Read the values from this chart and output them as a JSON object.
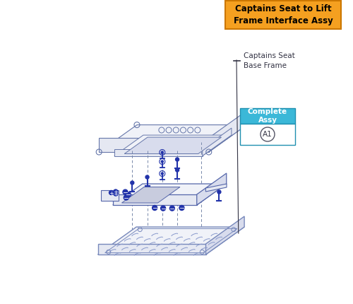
{
  "title": "Captains Seat to Lift\nFrame Interface Assy",
  "title_bg": "#F5A020",
  "title_text_color": "#000000",
  "title_border": "#cc7700",
  "label_captains_seat": "Captains Seat\nBase Frame",
  "label_complete": "Complete\nAssy",
  "label_a1": "A1",
  "complete_bg": "#3BB8D8",
  "complete_border": "#2090b0",
  "a1_border": "#666666",
  "line_color": "#5566aa",
  "line_thin": "#7788bb",
  "bg_color": "#ffffff",
  "dashed_color": "#7788aa",
  "screw_color": "#2233aa",
  "dark_line": "#444466"
}
